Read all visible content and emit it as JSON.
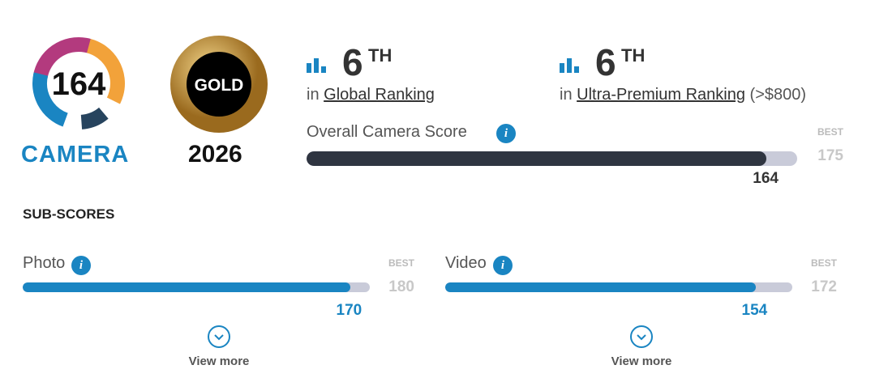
{
  "badge": {
    "score": 164,
    "label": "CAMERA"
  },
  "award": {
    "label": "GOLD",
    "year": "2026"
  },
  "rankings": [
    {
      "rank": 6,
      "suffix": "TH",
      "prefix": "in",
      "name": "Global Ranking"
    },
    {
      "rank": 6,
      "suffix": "TH",
      "prefix": "in",
      "name": "Ultra-Premium Ranking",
      "note": "(>$800)"
    }
  ],
  "overall": {
    "label": "Overall Camera Score",
    "best_label": "BEST",
    "best": 175,
    "score": 164
  },
  "subscores": {
    "title": "SUB-SCORES",
    "items": [
      {
        "label": "Photo",
        "best_label": "BEST",
        "best": 180,
        "score": 170,
        "more": "View more"
      },
      {
        "label": "Video",
        "best_label": "BEST",
        "best": 172,
        "score": 154,
        "more": "View more"
      }
    ]
  }
}
